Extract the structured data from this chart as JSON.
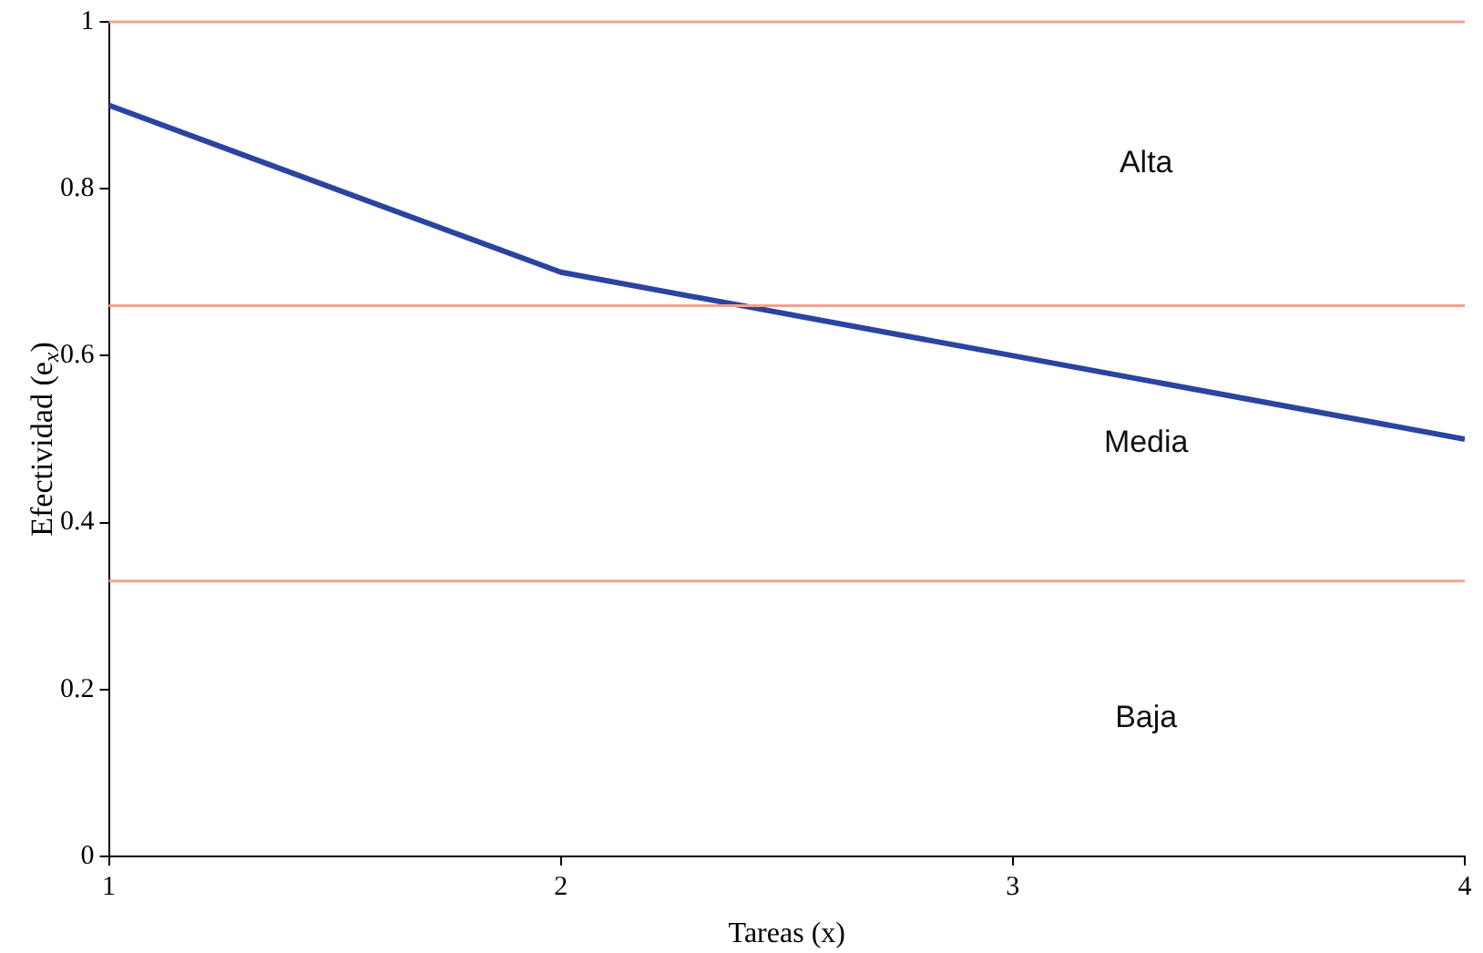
{
  "chart_data": {
    "type": "line",
    "xlabel": "Tareas (x)",
    "ylabel": "Efectividad (e$_{x}$)",
    "x": [
      1,
      2,
      3,
      4
    ],
    "series": [
      {
        "color": "#2b44a0",
        "values": [
          0.9,
          0.7,
          0.6,
          0.5
        ]
      }
    ],
    "xlim": [
      1,
      4
    ],
    "xticks": [
      1,
      2,
      3,
      4
    ],
    "ylim": [
      0,
      1
    ],
    "yticks": [
      0,
      0.2,
      0.4,
      0.6,
      0.8,
      1
    ],
    "grid": false,
    "legend": false,
    "marker": "none",
    "line_style": "solid",
    "ref_lines": [
      {
        "axis": "y",
        "value": 1,
        "color": "#f2a28c"
      },
      {
        "axis": "y",
        "value": 0.66,
        "color": "#f2a28c"
      },
      {
        "axis": "y",
        "value": 0.33,
        "color": "#f2a28c"
      }
    ],
    "annotations": [
      "Alta",
      "Media",
      "Baja"
    ]
  }
}
